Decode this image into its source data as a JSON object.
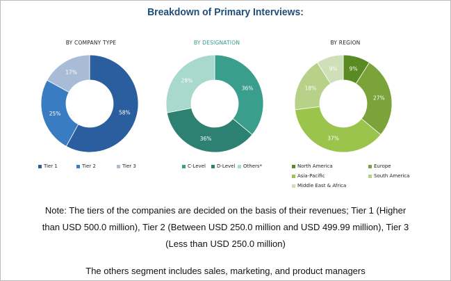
{
  "title": "Breakdown of Primary Interviews:",
  "colors": {
    "company": [
      "#2b5e9e",
      "#3a7cc1",
      "#a9bcd7"
    ],
    "designation": [
      "#3a9e8c",
      "#2d8172",
      "#a9d8cc"
    ],
    "region": [
      "#5a8a22",
      "#7aa33a",
      "#9bc44c",
      "#b7d188",
      "#cfe0b8"
    ]
  },
  "chart_data": [
    {
      "type": "pie",
      "title": "BY COMPANY TYPE",
      "categories": [
        "Tier 1",
        "Tier 2",
        "Tier 3"
      ],
      "values": [
        58,
        25,
        17
      ],
      "value_labels": [
        "58%",
        "25%",
        "17%"
      ],
      "legend": "bottom"
    },
    {
      "type": "pie",
      "title": "BY DESIGNATION",
      "categories": [
        "C-Level",
        "D-Level",
        "Others*"
      ],
      "values": [
        36,
        36,
        28
      ],
      "value_labels": [
        "36%",
        "36%",
        "28%"
      ],
      "legend": "bottom"
    },
    {
      "type": "pie",
      "title": "BY REGION",
      "categories": [
        "North America",
        "Europe",
        "Asia-Pacific",
        "South America",
        "Middle East & Africa"
      ],
      "values": [
        9,
        27,
        37,
        18,
        9
      ],
      "value_labels": [
        "9%",
        "27%",
        "37%",
        "18%",
        "9%"
      ],
      "legend": "bottom"
    }
  ],
  "note_lines": [
    "Note: The tiers of the companies are decided on the basis of their revenues; Tier 1 (Higher",
    "than USD 500.0 million), Tier 2 (Between USD 250.0 million and USD 499.99 million), Tier 3",
    "(Less than USD 250.0 million)"
  ],
  "footnote": "The others segment includes sales, marketing, and product managers"
}
